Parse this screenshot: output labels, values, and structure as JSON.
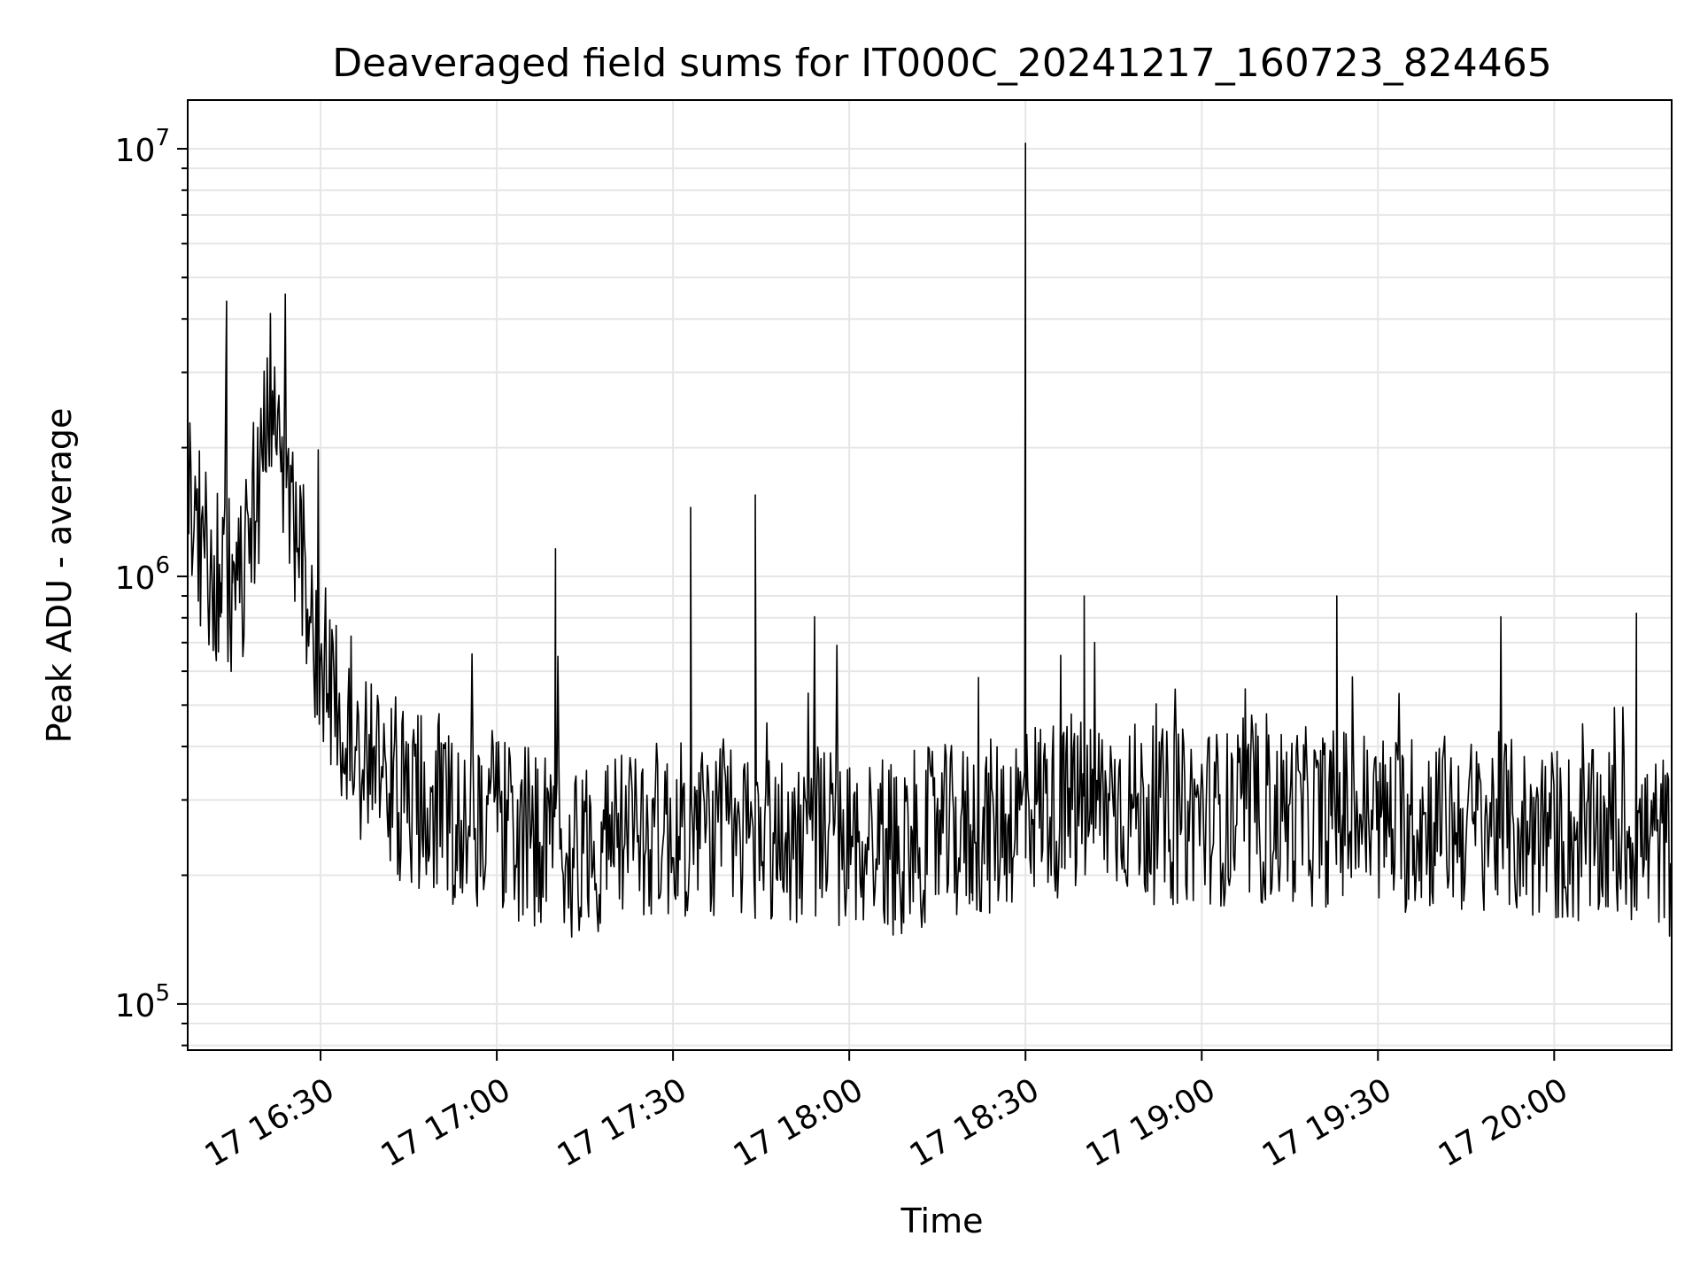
{
  "chart_data": {
    "type": "line",
    "title": "Deaveraged field sums for IT000C_20241217_160723_824465",
    "xlabel": "Time",
    "ylabel": "Peak ADU - average",
    "yscale": "log",
    "xlim": [
      "2024-12-17T16:07:23",
      "2024-12-17T20:20:00"
    ],
    "ylim": [
      78000,
      13000000
    ],
    "grid": true,
    "line_color": "#000000",
    "x_tick_labels": [
      "17 16:30",
      "17 17:00",
      "17 17:30",
      "17 18:00",
      "17 18:30",
      "17 19:00",
      "17 19:30",
      "17 20:00"
    ],
    "x_ticks": [
      "2024-12-17T16:30:00",
      "2024-12-17T17:00:00",
      "2024-12-17T17:30:00",
      "2024-12-17T18:00:00",
      "2024-12-17T18:30:00",
      "2024-12-17T19:00:00",
      "2024-12-17T19:30:00",
      "2024-12-17T20:00:00"
    ],
    "y_ticks": [
      {
        "base": "10",
        "exp": "5",
        "value": 100000
      },
      {
        "base": "10",
        "exp": "6",
        "value": 1000000
      },
      {
        "base": "10",
        "exp": "7",
        "value": 10000000
      }
    ],
    "series": [
      {
        "x": [
          "2024-12-17T16:07:23",
          "2024-12-17T16:10:00",
          "2024-12-17T16:13:00",
          "2024-12-17T16:14:00",
          "2024-12-17T16:16:00",
          "2024-12-17T16:20:00",
          "2024-12-17T16:21:00",
          "2024-12-17T16:25:00",
          "2024-12-17T16:30:00",
          "2024-12-17T16:32:00",
          "2024-12-17T16:35:00",
          "2024-12-17T16:40:00",
          "2024-12-17T16:45:00",
          "2024-12-17T16:50:00",
          "2024-12-17T16:55:00",
          "2024-12-17T17:00:00",
          "2024-12-17T17:03:00",
          "2024-12-17T17:08:00",
          "2024-12-17T17:10:00",
          "2024-12-17T17:14:00",
          "2024-12-17T17:20:00",
          "2024-12-17T17:25:00",
          "2024-12-17T17:30:00",
          "2024-12-17T17:33:00",
          "2024-12-17T17:35:00",
          "2024-12-17T17:40:00",
          "2024-12-17T17:44:00",
          "2024-12-17T17:50:00",
          "2024-12-17T17:55:00",
          "2024-12-17T18:00:00",
          "2024-12-17T18:05:00",
          "2024-12-17T18:07:00",
          "2024-12-17T18:10:00",
          "2024-12-17T18:15:00",
          "2024-12-17T18:20:00",
          "2024-12-17T18:22:00",
          "2024-12-17T18:25:00",
          "2024-12-17T18:30:00",
          "2024-12-17T18:33:00",
          "2024-12-17T18:36:00",
          "2024-12-17T18:40:00",
          "2024-12-17T18:45:00",
          "2024-12-17T18:50:00",
          "2024-12-17T18:55:00",
          "2024-12-17T19:00:00",
          "2024-12-17T19:05:00",
          "2024-12-17T19:10:00",
          "2024-12-17T19:15:00",
          "2024-12-17T19:20:00",
          "2024-12-17T19:23:00",
          "2024-12-17T19:25:00",
          "2024-12-17T19:30:00",
          "2024-12-17T19:35:00",
          "2024-12-17T19:40:00",
          "2024-12-17T19:45:00",
          "2024-12-17T19:50:00",
          "2024-12-17T19:55:00",
          "2024-12-17T20:00:00",
          "2024-12-17T20:05:00",
          "2024-12-17T20:10:00",
          "2024-12-17T20:14:00",
          "2024-12-17T20:18:00",
          "2024-12-17T20:20:00"
        ],
        "y": [
          1700000,
          1100000,
          1000000,
          4400000,
          900000,
          1900000,
          2900000,
          1400000,
          650000,
          500000,
          420000,
          350000,
          300000,
          290000,
          260000,
          280000,
          250000,
          240000,
          1160000,
          230000,
          240000,
          260000,
          250000,
          1450000,
          260000,
          250000,
          1550000,
          240000,
          260000,
          230000,
          250000,
          230000,
          240000,
          250000,
          250000,
          580000,
          260000,
          10300000,
          300000,
          280000,
          900000,
          300000,
          280000,
          270000,
          280000,
          270000,
          270000,
          280000,
          270000,
          900000,
          280000,
          270000,
          260000,
          270000,
          260000,
          270000,
          250000,
          250000,
          240000,
          250000,
          820000,
          240000,
          230000
        ]
      }
    ],
    "noise": {
      "note_free": true,
      "seed": 17,
      "sample_count": 1400
    }
  }
}
